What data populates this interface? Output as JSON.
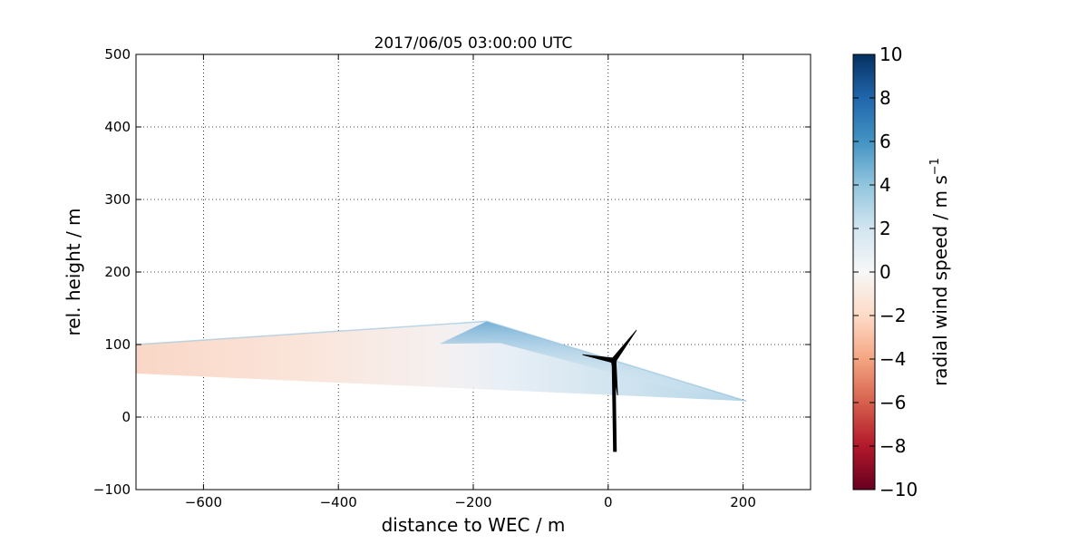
{
  "chart_data": {
    "type": "scatter",
    "title": "2017/06/05 03:00:00 UTC",
    "xlabel": "distance to WEC / m",
    "ylabel": "rel. height / m",
    "xlim": [
      -700,
      300
    ],
    "ylim": [
      -100,
      500
    ],
    "xticks": [
      -600,
      -400,
      -200,
      0,
      200
    ],
    "yticks": [
      -100,
      0,
      100,
      200,
      300,
      400,
      500
    ],
    "grid": true,
    "scan_region": {
      "outline": [
        [
          -700,
          100
        ],
        [
          -180,
          132
        ],
        [
          205,
          22
        ],
        [
          -700,
          60
        ]
      ],
      "description_values": {
        "upwind_radial_speed_approx": -1.5,
        "near_turbine_radial_speed_approx": 4
      }
    },
    "turbine": {
      "tower_base": [
        10,
        -48
      ],
      "hub": [
        8,
        78
      ],
      "blade_tips": [
        [
          -38,
          86
        ],
        [
          42,
          120
        ],
        [
          14,
          30
        ]
      ]
    },
    "colorbar": {
      "label": "radial wind speed / m s",
      "label_superscript": "−1",
      "range": [
        -10,
        10
      ],
      "ticks": [
        "10",
        "8",
        "6",
        "4",
        "2",
        "0",
        "−2",
        "−4",
        "−6",
        "−8",
        "−10"
      ],
      "colormap": "RdBu",
      "stops": [
        "#67001f",
        "#b2182b",
        "#d6604d",
        "#f4a582",
        "#fddbc7",
        "#f7f7f7",
        "#d1e5f0",
        "#92c5de",
        "#4393c3",
        "#2166ac",
        "#053061"
      ]
    }
  }
}
